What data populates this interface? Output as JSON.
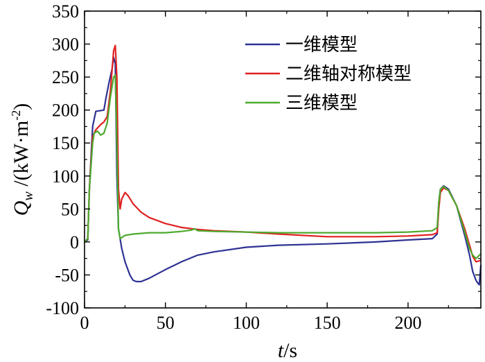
{
  "chart_data": {
    "type": "line",
    "title": "",
    "xlabel": {
      "var": "t",
      "unit": "/s"
    },
    "ylabel": {
      "var": "Q",
      "sub": "w",
      "unit_pre": "/(kW·m",
      "unit_sup": "-2",
      "unit_post": ")"
    },
    "xlim": [
      0,
      245
    ],
    "ylim": [
      -100,
      350
    ],
    "xticks": [
      0,
      50,
      100,
      150,
      200
    ],
    "yticks": [
      -100,
      -50,
      0,
      50,
      100,
      150,
      200,
      250,
      300,
      350
    ],
    "legend_position": "top-right",
    "series": [
      {
        "name": "一维模型",
        "color": "#2e3192",
        "points": [
          [
            0,
            0
          ],
          [
            2,
            3
          ],
          [
            3,
            80
          ],
          [
            5,
            175
          ],
          [
            7,
            198
          ],
          [
            12,
            200
          ],
          [
            13,
            215
          ],
          [
            15,
            240
          ],
          [
            17,
            262
          ],
          [
            18,
            280
          ],
          [
            19,
            270
          ],
          [
            20,
            100
          ],
          [
            21,
            20
          ],
          [
            23,
            -10
          ],
          [
            25,
            -30
          ],
          [
            28,
            -50
          ],
          [
            30,
            -58
          ],
          [
            32,
            -60
          ],
          [
            35,
            -60
          ],
          [
            40,
            -55
          ],
          [
            50,
            -42
          ],
          [
            60,
            -30
          ],
          [
            70,
            -20
          ],
          [
            80,
            -15
          ],
          [
            100,
            -8
          ],
          [
            120,
            -5
          ],
          [
            150,
            -3
          ],
          [
            180,
            0
          ],
          [
            200,
            3
          ],
          [
            215,
            5
          ],
          [
            218,
            12
          ],
          [
            219,
            60
          ],
          [
            220,
            80
          ],
          [
            222,
            85
          ],
          [
            225,
            80
          ],
          [
            230,
            55
          ],
          [
            235,
            10
          ],
          [
            238,
            -20
          ],
          [
            240,
            -45
          ],
          [
            242,
            -58
          ],
          [
            243,
            -62
          ],
          [
            244,
            -65
          ],
          [
            245,
            -35
          ]
        ]
      },
      {
        "name": "二维轴对称模型",
        "color": "#e02020",
        "points": [
          [
            0,
            0
          ],
          [
            2,
            5
          ],
          [
            3,
            80
          ],
          [
            5,
            160
          ],
          [
            7,
            170
          ],
          [
            10,
            178
          ],
          [
            12,
            182
          ],
          [
            14,
            190
          ],
          [
            16,
            230
          ],
          [
            18,
            290
          ],
          [
            19,
            298
          ],
          [
            20,
            250
          ],
          [
            21,
            80
          ],
          [
            22,
            50
          ],
          [
            23,
            65
          ],
          [
            25,
            75
          ],
          [
            27,
            70
          ],
          [
            30,
            58
          ],
          [
            35,
            45
          ],
          [
            40,
            37
          ],
          [
            50,
            28
          ],
          [
            60,
            22
          ],
          [
            70,
            19
          ],
          [
            80,
            17
          ],
          [
            100,
            15
          ],
          [
            120,
            12
          ],
          [
            150,
            8
          ],
          [
            180,
            8
          ],
          [
            200,
            9
          ],
          [
            215,
            11
          ],
          [
            218,
            14
          ],
          [
            219,
            50
          ],
          [
            220,
            75
          ],
          [
            222,
            82
          ],
          [
            225,
            78
          ],
          [
            230,
            55
          ],
          [
            235,
            20
          ],
          [
            238,
            -5
          ],
          [
            240,
            -22
          ],
          [
            242,
            -30
          ],
          [
            245,
            -28
          ]
        ]
      },
      {
        "name": "三维模型",
        "color": "#4daa2e",
        "points": [
          [
            0,
            0
          ],
          [
            2,
            5
          ],
          [
            3,
            80
          ],
          [
            5,
            150
          ],
          [
            6,
            165
          ],
          [
            8,
            168
          ],
          [
            10,
            162
          ],
          [
            12,
            165
          ],
          [
            14,
            180
          ],
          [
            16,
            220
          ],
          [
            18,
            250
          ],
          [
            19,
            253
          ],
          [
            20,
            150
          ],
          [
            21,
            20
          ],
          [
            22,
            5
          ],
          [
            25,
            10
          ],
          [
            30,
            12
          ],
          [
            40,
            14
          ],
          [
            50,
            14
          ],
          [
            60,
            16
          ],
          [
            66,
            18
          ],
          [
            68,
            20
          ],
          [
            70,
            17
          ],
          [
            80,
            16
          ],
          [
            100,
            15
          ],
          [
            120,
            14
          ],
          [
            150,
            14
          ],
          [
            180,
            14
          ],
          [
            200,
            15
          ],
          [
            215,
            17
          ],
          [
            218,
            22
          ],
          [
            219,
            60
          ],
          [
            220,
            80
          ],
          [
            222,
            84
          ],
          [
            225,
            78
          ],
          [
            230,
            55
          ],
          [
            235,
            15
          ],
          [
            238,
            -10
          ],
          [
            240,
            -20
          ],
          [
            242,
            -25
          ],
          [
            245,
            -18
          ]
        ]
      }
    ]
  }
}
